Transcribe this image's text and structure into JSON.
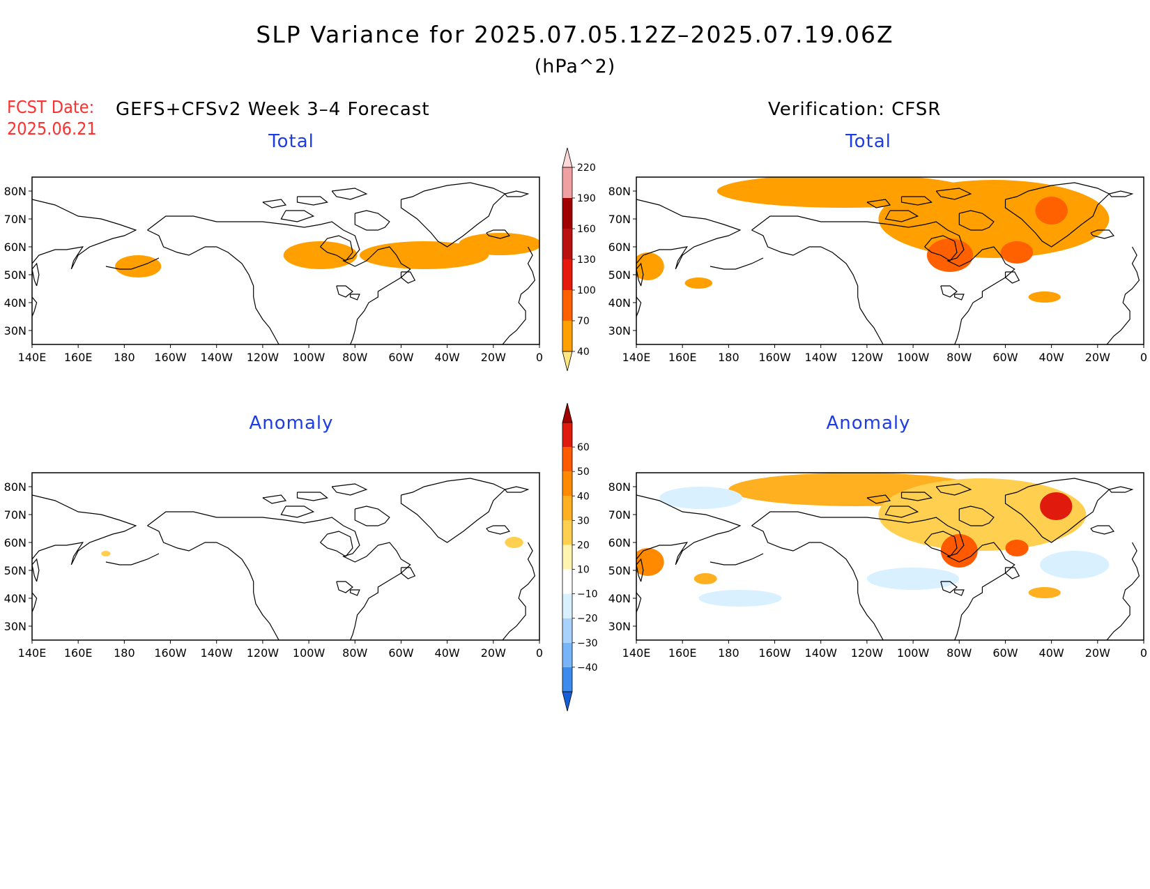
{
  "title": "SLP Variance for 2025.07.05.12Z–2025.07.19.06Z",
  "units": "(hPa^2)",
  "fcst_date_label": "FCST Date:",
  "fcst_date": "2025.06.21",
  "forecast_heading": "GEFS+CFSv2 Week 3–4 Forecast",
  "verification_heading": "Verification: CFSR",
  "panels": [
    {
      "id": "forecast-total",
      "subtitle": "Total"
    },
    {
      "id": "verification-total",
      "subtitle": "Total"
    },
    {
      "id": "forecast-anomaly",
      "subtitle": "Anomaly"
    },
    {
      "id": "verification-anomaly",
      "subtitle": "Anomaly"
    }
  ],
  "lon_labels": [
    "140E",
    "160E",
    "180",
    "160W",
    "140W",
    "120W",
    "100W",
    "80W",
    "60W",
    "40W",
    "20W",
    "0"
  ],
  "lat_labels": [
    "80N",
    "70N",
    "60N",
    "50N",
    "40N",
    "30N"
  ],
  "map_extent": {
    "lon_min": 140,
    "lon_max": 360,
    "lat_min": 25,
    "lat_max": 85
  },
  "colorbars": {
    "total": {
      "levels": [
        "40",
        "70",
        "100",
        "130",
        "160",
        "190",
        "220"
      ],
      "colors": [
        "#ffe680",
        "#ffa000",
        "#ff6000",
        "#e51a0c",
        "#bb1010",
        "#a00000",
        "#f0a0a0",
        "#ffd8d8"
      ]
    },
    "anomaly": {
      "levels": [
        "−40",
        "−30",
        "−20",
        "−10",
        "10",
        "20",
        "30",
        "40",
        "50",
        "60"
      ],
      "colors": [
        "#1560d8",
        "#3c8cf0",
        "#78b4f8",
        "#a8d2fc",
        "#d8f0ff",
        "#ffffff",
        "#fff5b0",
        "#ffd050",
        "#ffb020",
        "#ff8a00",
        "#ff5a00",
        "#e01a0c",
        "#a00000"
      ]
    }
  },
  "fields": {
    "forecast_total_shading": [
      {
        "lon": 186,
        "lat": 53,
        "rlon": 10,
        "rlat": 4,
        "level": 1
      },
      {
        "lon": 265,
        "lat": 57,
        "rlon": 16,
        "rlat": 5,
        "level": 1
      },
      {
        "lon": 310,
        "lat": 57,
        "rlon": 28,
        "rlat": 5,
        "level": 1
      },
      {
        "lon": 343,
        "lat": 61,
        "rlon": 18,
        "rlat": 4,
        "level": 1
      }
    ],
    "verification_total_shading": [
      {
        "lon": 230,
        "lat": 80,
        "rlon": 55,
        "rlat": 6,
        "level": 1
      },
      {
        "lon": 295,
        "lat": 70,
        "rlon": 50,
        "rlat": 14,
        "level": 1
      },
      {
        "lon": 276,
        "lat": 57,
        "rlon": 10,
        "rlat": 6,
        "level": 2
      },
      {
        "lon": 305,
        "lat": 58,
        "rlon": 7,
        "rlat": 4,
        "level": 2
      },
      {
        "lon": 320,
        "lat": 73,
        "rlon": 7,
        "rlat": 5,
        "level": 2
      },
      {
        "lon": 145,
        "lat": 53,
        "rlon": 7,
        "rlat": 5,
        "level": 1
      },
      {
        "lon": 167,
        "lat": 47,
        "rlon": 6,
        "rlat": 2,
        "level": 1
      },
      {
        "lon": 317,
        "lat": 42,
        "rlon": 7,
        "rlat": 2,
        "level": 1
      }
    ],
    "forecast_anomaly_shading": [
      {
        "lon": 172,
        "lat": 56,
        "rlon": 2,
        "rlat": 1,
        "level": 7
      },
      {
        "lon": 349,
        "lat": 60,
        "rlon": 4,
        "rlat": 2,
        "level": 7
      }
    ],
    "verification_anomaly_shading": [
      {
        "lon": 235,
        "lat": 79,
        "rlon": 55,
        "rlat": 6,
        "level": 8
      },
      {
        "lon": 290,
        "lat": 70,
        "rlon": 45,
        "rlat": 13,
        "level": 7
      },
      {
        "lon": 280,
        "lat": 57,
        "rlon": 8,
        "rlat": 6,
        "level": 10
      },
      {
        "lon": 305,
        "lat": 58,
        "rlon": 5,
        "rlat": 3,
        "level": 10
      },
      {
        "lon": 322,
        "lat": 73,
        "rlon": 7,
        "rlat": 5,
        "level": 11
      },
      {
        "lon": 145,
        "lat": 53,
        "rlon": 7,
        "rlat": 5,
        "level": 9
      },
      {
        "lon": 170,
        "lat": 47,
        "rlon": 5,
        "rlat": 2,
        "level": 8
      },
      {
        "lon": 317,
        "lat": 42,
        "rlon": 7,
        "rlat": 2,
        "level": 8
      },
      {
        "lon": 330,
        "lat": 52,
        "rlon": 15,
        "rlat": 5,
        "level": 4
      },
      {
        "lon": 168,
        "lat": 76,
        "rlon": 18,
        "rlat": 4,
        "level": 4
      },
      {
        "lon": 185,
        "lat": 40,
        "rlon": 18,
        "rlat": 3,
        "level": 4
      },
      {
        "lon": 260,
        "lat": 47,
        "rlon": 20,
        "rlat": 4,
        "level": 4
      }
    ]
  }
}
